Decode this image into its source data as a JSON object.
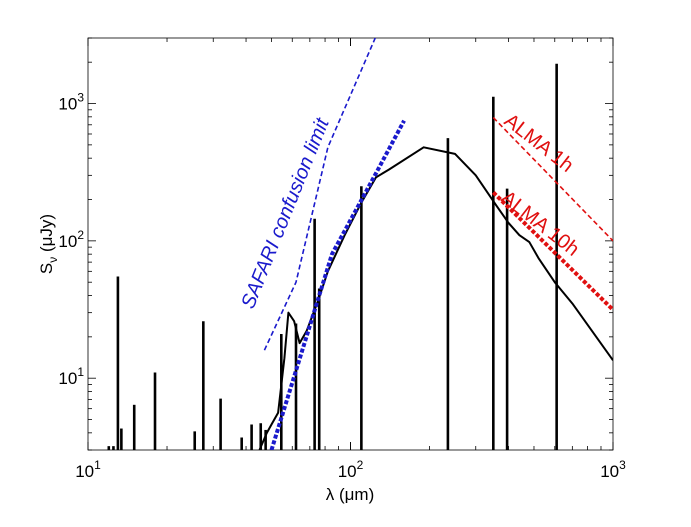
{
  "chart_data": {
    "type": "line",
    "xscale": "log",
    "yscale": "log",
    "xlim": [
      10,
      1000
    ],
    "ylim": [
      3,
      3000
    ],
    "xlabel": "λ (μm)",
    "ylabel": "S_ν (μJy)",
    "ylabel_main": "S",
    "ylabel_sub": "ν",
    "ylabel_rest": " (μJy)",
    "x_ticks": [
      {
        "value": 10,
        "base": "10",
        "exp": "1"
      },
      {
        "value": 100,
        "base": "10",
        "exp": "2"
      },
      {
        "value": 1000,
        "base": "10",
        "exp": "3"
      }
    ],
    "y_ticks": [
      {
        "value": 10,
        "base": "10",
        "exp": "1"
      },
      {
        "value": 100,
        "base": "10",
        "exp": "2"
      },
      {
        "value": 1000,
        "base": "10",
        "exp": "3"
      }
    ],
    "colors": {
      "sed": "#000000",
      "safari": "#1a1acc",
      "alma": "#e01010"
    },
    "series": [
      {
        "name": "SED",
        "style": "solid",
        "color": "#000000",
        "points": [
          [
            45,
            3.0
          ],
          [
            48,
            4.0
          ],
          [
            50,
            4.6
          ],
          [
            53,
            5.6
          ],
          [
            56,
            14.0
          ],
          [
            58,
            30.0
          ],
          [
            61,
            26.0
          ],
          [
            64,
            18.0
          ],
          [
            68,
            22.0
          ],
          [
            75,
            36.0
          ],
          [
            82,
            60.0
          ],
          [
            95,
            110.0
          ],
          [
            110,
            190.0
          ],
          [
            125,
            290.0
          ],
          [
            140,
            330.0
          ],
          [
            190,
            480.0
          ],
          [
            250,
            430.0
          ],
          [
            300,
            300.0
          ],
          [
            360,
            180.0
          ],
          [
            400,
            135.0
          ],
          [
            440,
            110.0
          ],
          [
            480,
            98.0
          ],
          [
            520,
            75.0
          ],
          [
            600,
            50.0
          ],
          [
            700,
            35.0
          ],
          [
            1000,
            13.5
          ]
        ],
        "lines": [
          {
            "x": 12.0,
            "y": 3.2
          },
          {
            "x": 12.5,
            "y": 3.2
          },
          {
            "x": 13.0,
            "y": 55
          },
          {
            "x": 13.4,
            "y": 4.3
          },
          {
            "x": 15.0,
            "y": 6.4
          },
          {
            "x": 18.0,
            "y": 11.0
          },
          {
            "x": 25.5,
            "y": 4.1
          },
          {
            "x": 27.5,
            "y": 26.0
          },
          {
            "x": 32.0,
            "y": 7.1
          },
          {
            "x": 38.5,
            "y": 3.7
          },
          {
            "x": 42.0,
            "y": 4.6
          },
          {
            "x": 45.5,
            "y": 4.7
          },
          {
            "x": 47.5,
            "y": 4.2
          },
          {
            "x": 54.5,
            "y": 21.0
          },
          {
            "x": 62.0,
            "y": 25.0
          },
          {
            "x": 73.0,
            "y": 145.0
          },
          {
            "x": 76.0,
            "y": 45.0
          },
          {
            "x": 110.0,
            "y": 250.0
          },
          {
            "x": 235.0,
            "y": 560.0
          },
          {
            "x": 350.0,
            "y": 1120.0
          },
          {
            "x": 395.0,
            "y": 240.0
          },
          {
            "x": 610.0,
            "y": 1950.0
          }
        ]
      },
      {
        "name": "SAFARI confusion limit",
        "style": "dashed",
        "color": "#1a1acc",
        "points": [
          [
            47,
            16
          ],
          [
            62,
            50
          ],
          [
            82,
            480
          ],
          [
            156,
            8200
          ]
        ]
      },
      {
        "name": "SAFARI model fit",
        "style": "bold-dashed",
        "color": "#1a1acc",
        "points": [
          [
            50,
            3.0
          ],
          [
            85,
            80
          ],
          [
            125,
            310
          ],
          [
            160,
            750
          ]
        ]
      },
      {
        "name": "ALMA 1h",
        "style": "dashed",
        "color": "#e01010",
        "points": [
          [
            350,
            790
          ],
          [
            1000,
            100
          ]
        ]
      },
      {
        "name": "ALMA 10h",
        "style": "bold-dashed",
        "color": "#e01010",
        "points": [
          [
            350,
            225
          ],
          [
            1000,
            31.5
          ]
        ]
      }
    ],
    "annotations": [
      {
        "text": "SAFARI confusion limit",
        "color": "#1a1acc"
      },
      {
        "text": "ALMA 1h",
        "color": "#e01010"
      },
      {
        "text": "ALMA 10h",
        "color": "#e01010"
      }
    ]
  }
}
